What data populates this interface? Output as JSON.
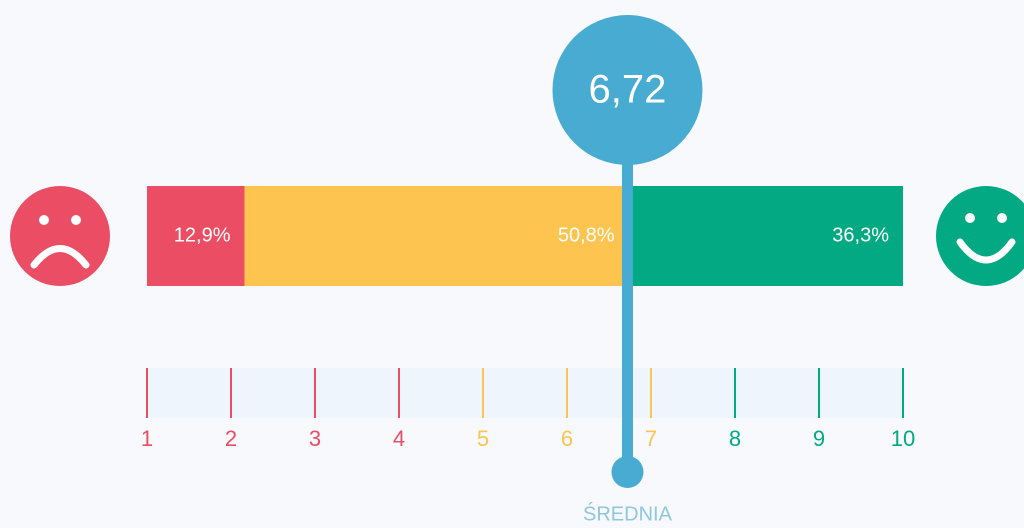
{
  "chart_data": {
    "type": "stacked-bar",
    "orientation": "horizontal",
    "values": [
      12.9,
      50.8,
      36.3
    ],
    "value_labels": [
      "12,9%",
      "50,8%",
      "36,3%"
    ],
    "colors": [
      "#ea4d64",
      "#fdc44f",
      "#02a982"
    ],
    "xlim": [
      1,
      10
    ],
    "xticks": [
      1,
      2,
      3,
      4,
      5,
      6,
      7,
      8,
      9,
      10
    ],
    "xtick_colors": [
      "#ea4d64",
      "#ea4d64",
      "#ea4d64",
      "#ea4d64",
      "#fdc44f",
      "#fdc44f",
      "#fdc44f",
      "#02a982",
      "#02a982",
      "#02a982"
    ],
    "average": {
      "value": 6.72,
      "label": "6,72"
    },
    "average_color": "#48abd2",
    "annotation": "ŚREDNIA"
  }
}
